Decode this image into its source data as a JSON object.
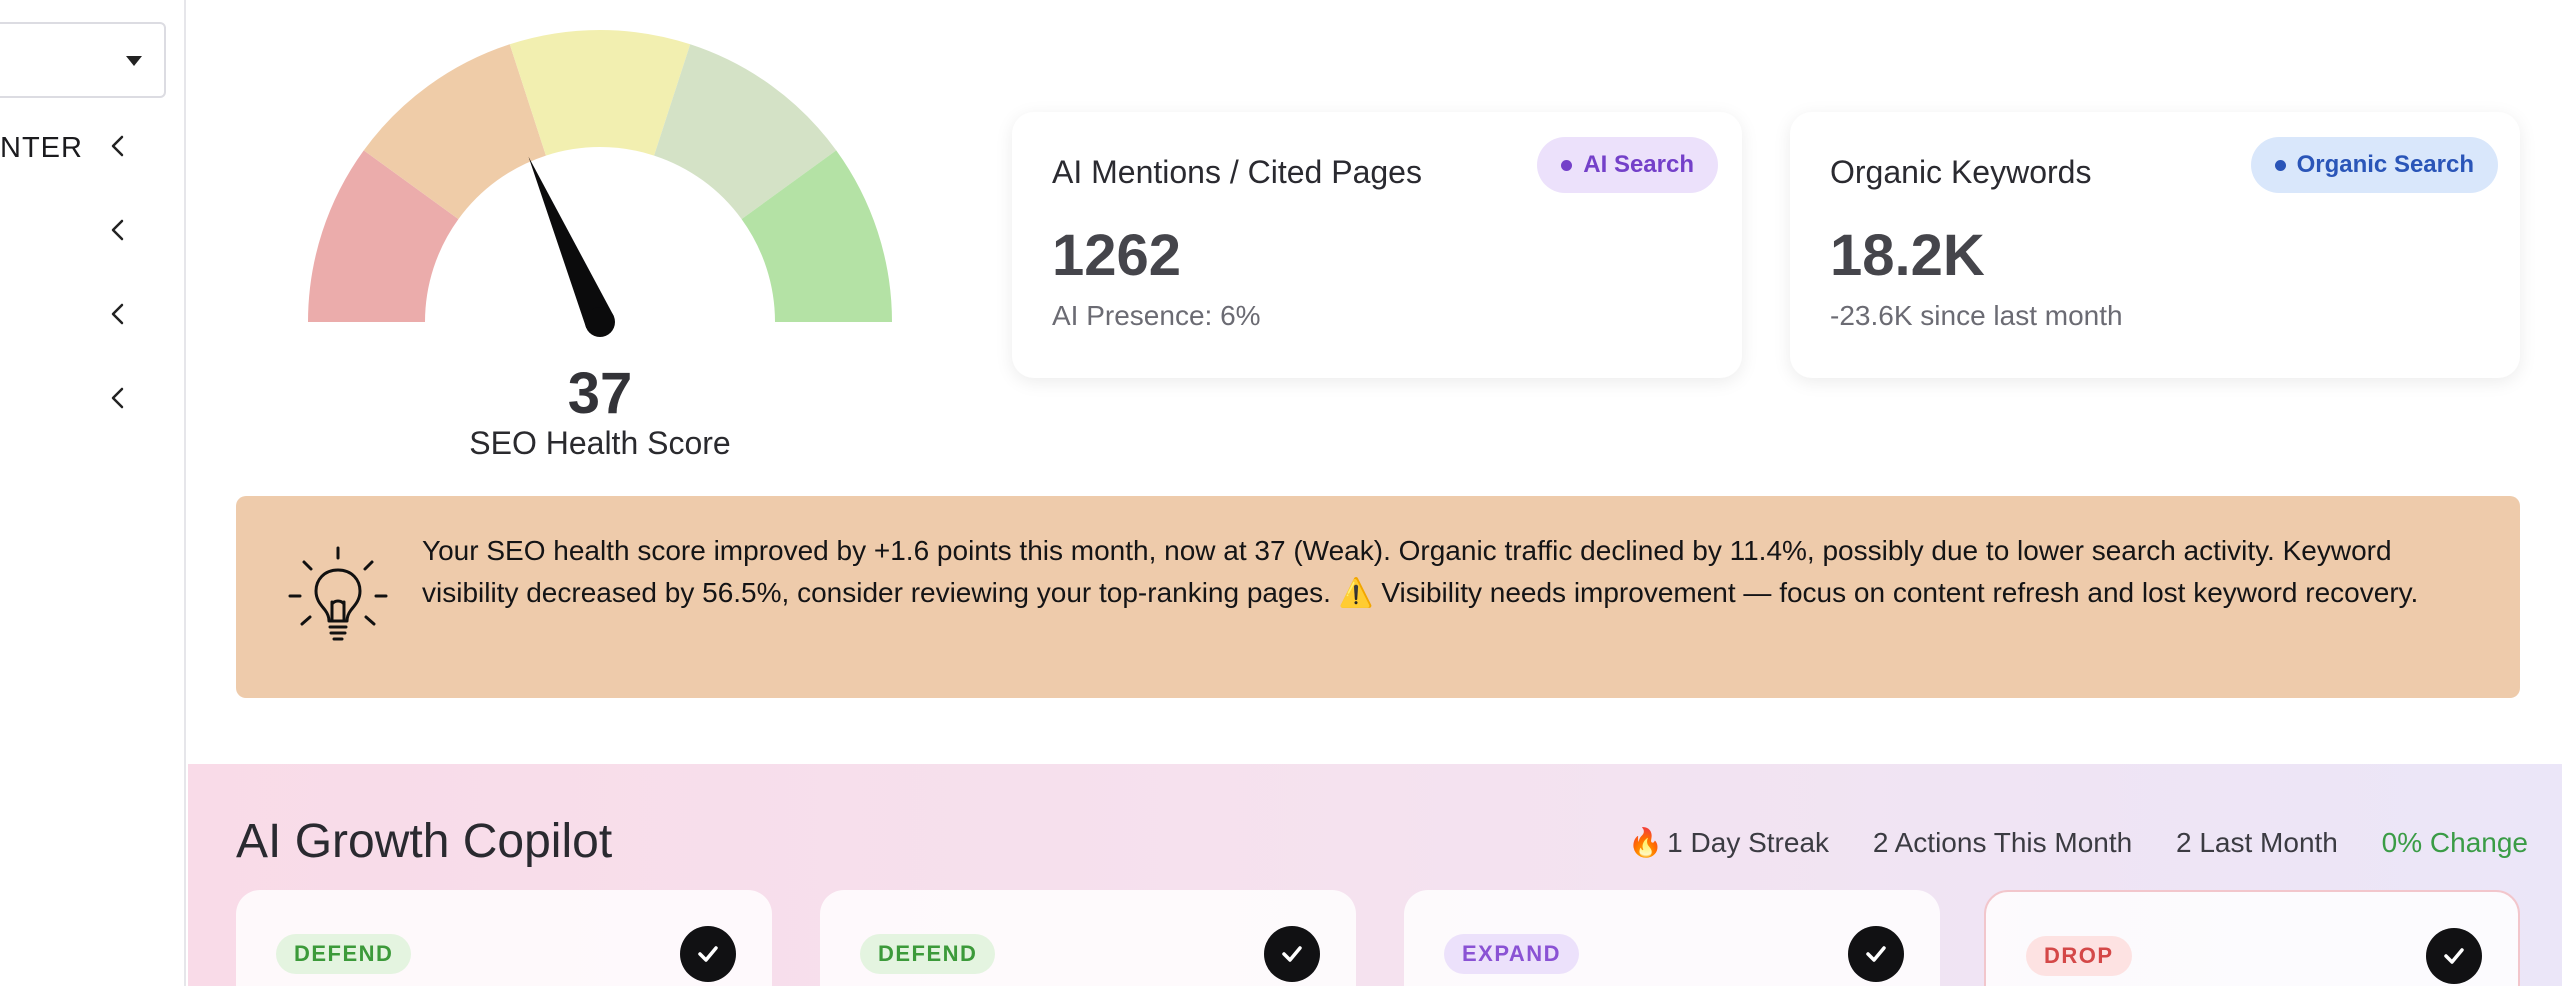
{
  "sidebar": {
    "select": {
      "value": ""
    },
    "items": [
      {
        "label": "NTER"
      },
      {
        "label": ""
      },
      {
        "label": ""
      },
      {
        "label": ""
      }
    ]
  },
  "gauge": {
    "score": "37",
    "score_value": 37,
    "max": 100,
    "label": "SEO Health Score",
    "segment_colors": [
      "#ebacab",
      "#efcca8",
      "#f2efb0",
      "#d4e2c6",
      "#b4e2a5"
    ]
  },
  "cards": [
    {
      "title": "AI Mentions / Cited Pages",
      "badge": "AI Search",
      "value": "1262",
      "sub": "AI Presence: 6%"
    },
    {
      "title": "Organic Keywords",
      "badge": "Organic Search",
      "value": "18.2K",
      "sub": "-23.6K since last month"
    }
  ],
  "insight": {
    "icon": "lightbulb-icon",
    "text": "Your SEO health score improved by +1.6 points this month, now at 37 (Weak). Organic traffic declined by 11.4%, possibly due to lower search activity. Keyword visibility decreased by 56.5%, consider reviewing your top-ranking pages. ⚠️ Visibility needs improvement — focus on content refresh and lost keyword recovery."
  },
  "copilot": {
    "title": "AI Growth Copilot",
    "streak_icon": "🔥",
    "streak": "1 Day Streak",
    "actions_this_month": "2 Actions This Month",
    "last_month": "2 Last Month",
    "change": "0% Change",
    "cards": [
      {
        "tag": "DEFEND"
      },
      {
        "tag": "DEFEND"
      },
      {
        "tag": "EXPAND"
      },
      {
        "tag": "DROP"
      }
    ]
  }
}
